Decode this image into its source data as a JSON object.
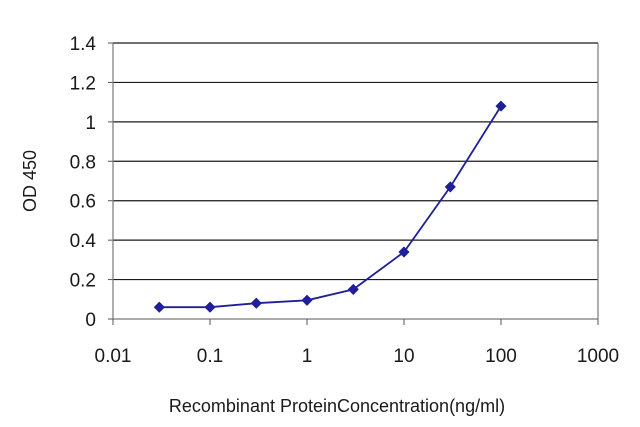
{
  "chart_data": {
    "type": "line",
    "title": "",
    "xlabel": "Recombinant ProteinConcentration(ng/ml)",
    "ylabel": "OD 450",
    "xscale": "log",
    "xlim": [
      0.01,
      1000
    ],
    "ylim": [
      0,
      1.4
    ],
    "x_ticks": [
      "0.01",
      "0.1",
      "1",
      "10",
      "100",
      "1000"
    ],
    "y_ticks": [
      "0",
      "0.2",
      "0.4",
      "0.6",
      "0.8",
      "1",
      "1.2",
      "1.4"
    ],
    "grid": "horizontal",
    "legend": "none",
    "series": [
      {
        "color": "#1f1f9a",
        "marker": "diamond",
        "x": [
          0.03,
          0.1,
          0.3,
          1,
          3,
          10,
          30,
          100
        ],
        "y": [
          0.06,
          0.06,
          0.08,
          0.095,
          0.15,
          0.34,
          0.67,
          1.08
        ]
      }
    ]
  }
}
